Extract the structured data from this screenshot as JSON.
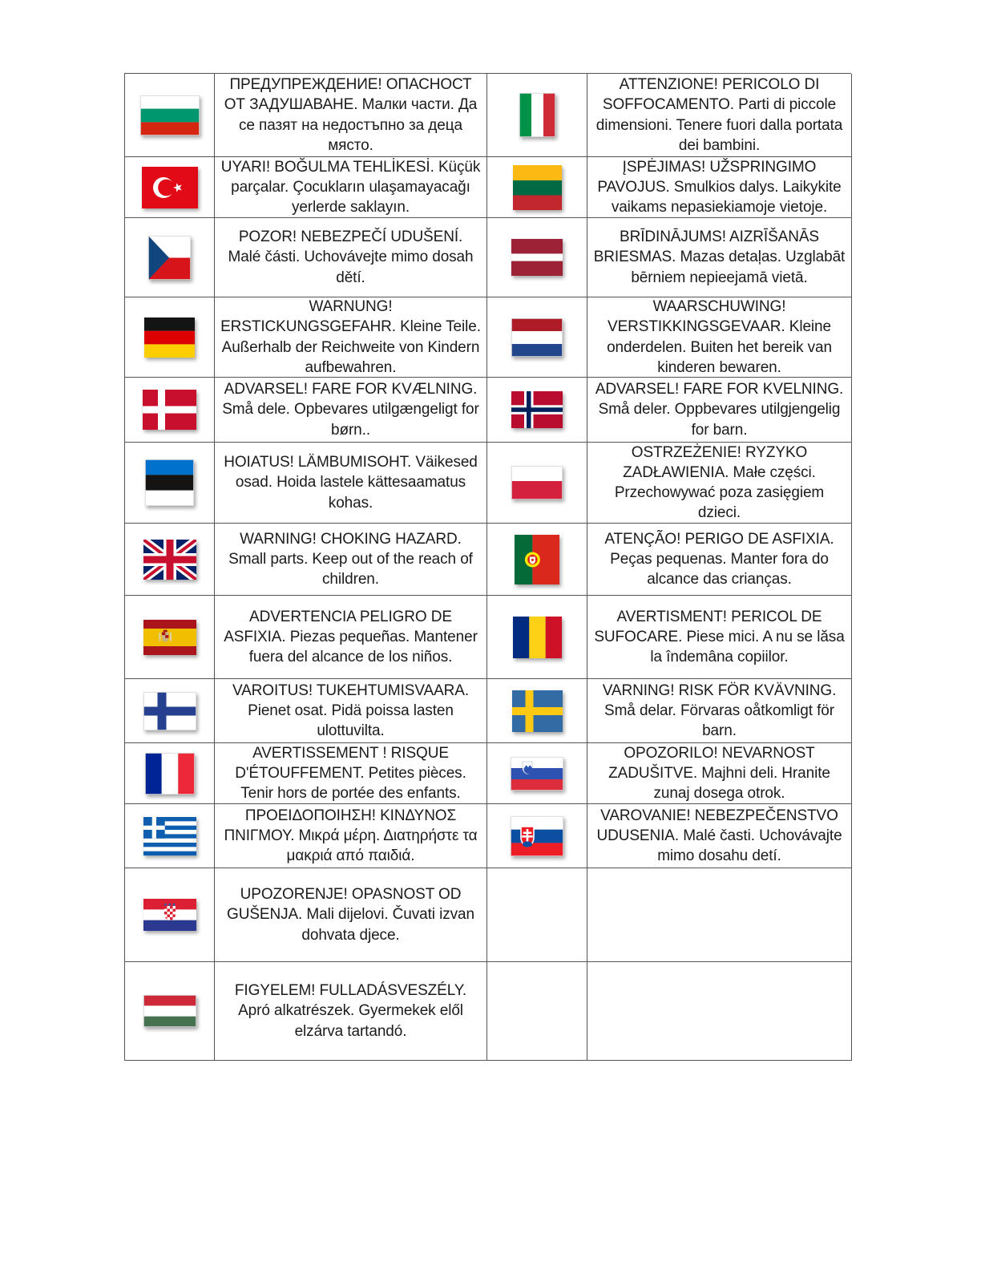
{
  "table": {
    "rows": [
      {
        "left": {
          "lang": "bulgarian",
          "flag": "bulgaria",
          "text": "ПРЕДУПРЕЖДЕНИЕ! ОПАСНОСТ ОТ ЗАДУШАВАНЕ. Малки части. Да се пазят на недостъпно за деца място."
        },
        "right": {
          "lang": "italian",
          "flag": "italy",
          "text": "ATTENZIONE! PERICOLO DI SOFFOCAMENTO. Parti di piccole dimensioni. Tenere fuori dalla portata dei bambini."
        }
      },
      {
        "left": {
          "lang": "turkish",
          "flag": "turkey",
          "text": "UYARI! BOĞULMA TEHLİKESİ. Küçük parçalar. Çocukların ulaşamayacağı yerlerde saklayın."
        },
        "right": {
          "lang": "lithuanian",
          "flag": "lithuania",
          "text": "ĮSPĖJIMAS! UŽSPRINGIMO PAVOJUS. Smulkios dalys. Laikykite vaikams nepasiekiamoje vietoje."
        }
      },
      {
        "left": {
          "lang": "czech",
          "flag": "czechia",
          "text": "POZOR! NEBEZPEČÍ UDUŠENÍ. Malé části. Uchovávejte mimo dosah dětí."
        },
        "right": {
          "lang": "latvian",
          "flag": "latvia",
          "text": "BRĪDINĀJUMS! AIZRĪŠANĀS BRIESMAS. Mazas detaļas. Uzglabāt bērniem nepieejamā vietā."
        }
      },
      {
        "left": {
          "lang": "german",
          "flag": "germany",
          "text": "WARNUNG! ERSTICKUNGSGEFAHR. Kleine Teile. Außerhalb der Reichweite von Kindern aufbewahren."
        },
        "right": {
          "lang": "dutch",
          "flag": "netherlands",
          "text": "WAARSCHUWING! VERSTIKKINGSGEVAAR. Kleine onderdelen. Buiten het bereik van kinderen bewaren."
        }
      },
      {
        "left": {
          "lang": "danish",
          "flag": "denmark",
          "text": "ADVARSEL! FARE FOR KVÆLNING. Små dele. Opbevares utilgængeligt for børn.."
        },
        "right": {
          "lang": "norwegian",
          "flag": "norway",
          "text": "ADVARSEL! FARE FOR KVELNING. Små deler. Oppbevares utilgjengelig for barn."
        }
      },
      {
        "left": {
          "lang": "estonian",
          "flag": "estonia",
          "text": "HOIATUS! LÄMBUMISOHT. Väikesed osad. Hoida lastele kättesaamatus kohas."
        },
        "right": {
          "lang": "polish",
          "flag": "poland",
          "text": "OSTRZEŻENIE! RYZYKO ZADŁAWIENIA. Małe części. Przechowywać poza zasięgiem dzieci."
        }
      },
      {
        "left": {
          "lang": "english",
          "flag": "uk",
          "text": "WARNING! CHOKING HAZARD. Small parts. Keep out of the reach of children."
        },
        "right": {
          "lang": "portuguese",
          "flag": "portugal",
          "text": "ATENÇÃO! PERIGO DE ASFIXIA. Peças pequenas. Manter fora do alcance das crianças."
        }
      },
      {
        "left": {
          "lang": "spanish",
          "flag": "spain",
          "text": "ADVERTENCIA PELIGRO DE ASFIXIA. Piezas pequeñas. Mantener fuera del alcance de los niños."
        },
        "right": {
          "lang": "romanian",
          "flag": "romania",
          "text": "AVERTISMENT! PERICOL DE SUFOCARE. Piese mici. A nu se lăsa la îndemâna copiilor."
        }
      },
      {
        "left": {
          "lang": "finnish",
          "flag": "finland",
          "text": "VAROITUS! TUKEHTUMISVAARA. Pienet osat. Pidä poissa lasten ulottuvilta."
        },
        "right": {
          "lang": "swedish",
          "flag": "sweden",
          "text": "VARNING! RISK FÖR KVÄVNING. Små delar. Förvaras oåtkomligt för barn."
        }
      },
      {
        "left": {
          "lang": "french",
          "flag": "france",
          "text": "AVERTISSEMENT ! RISQUE D'ÉTOUFFEMENT. Petites pièces. Tenir hors de portée des enfants."
        },
        "right": {
          "lang": "slovenian",
          "flag": "slovenia",
          "text": "OPOZORILO! NEVARNOST ZADUŠITVE. Majhni deli. Hranite zunaj dosega otrok."
        }
      },
      {
        "left": {
          "lang": "greek",
          "flag": "greece",
          "text": "ΠΡΟΕΙΔΟΠΟΙΗΣΗ! ΚΙΝΔΥΝΟΣ ΠΝΙΓΜΟΥ. Μικρά μέρη. Διατηρήστε τα μακριά από παιδιά."
        },
        "right": {
          "lang": "slovak",
          "flag": "slovakia",
          "text": "VAROVANIE! NEBEZPEČENSTVO UDUSENIA. Malé časti. Uchovávajte mimo dosahu detí."
        }
      },
      {
        "left": {
          "lang": "croatian",
          "flag": "croatia",
          "text": "UPOZORENJE! OPASNOST OD GUŠENJA. Mali dijelovi. Čuvati izvan dohvata djece."
        },
        "right": null
      },
      {
        "left": {
          "lang": "hungarian",
          "flag": "hungary",
          "text": "FIGYELEM! FULLADÁSVESZÉLY. Apró alkatrészek. Gyermekek elől elzárva tartandó."
        },
        "right": null
      }
    ]
  }
}
